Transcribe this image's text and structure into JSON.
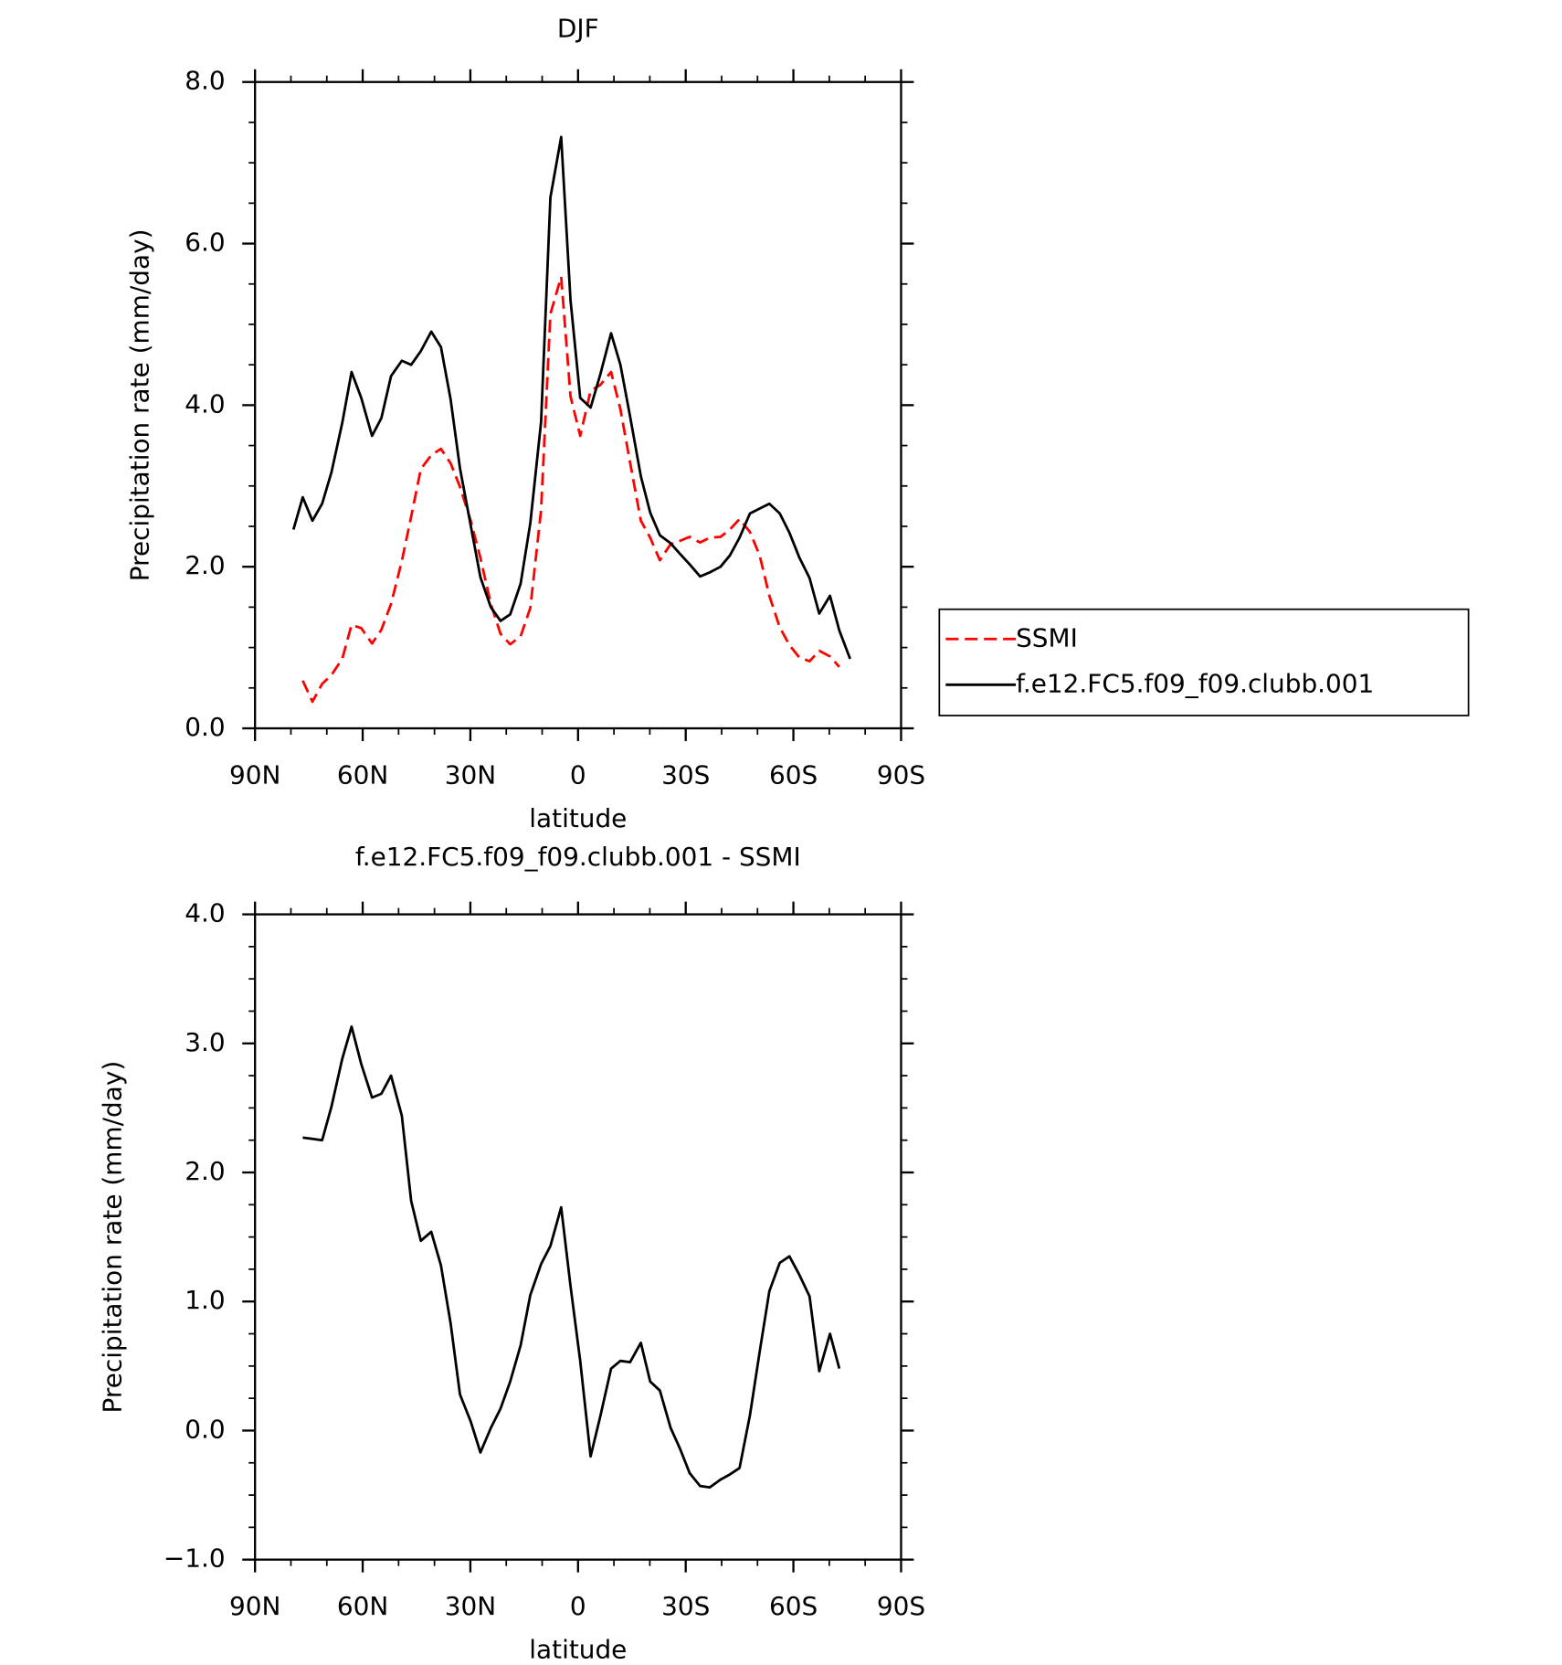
{
  "chart_data": [
    {
      "type": "line",
      "title": "DJF",
      "xlabel": "latitude",
      "ylabel": "Precipitation rate (mm/day)",
      "x": [
        79.3,
        76.7,
        74.0,
        71.3,
        68.7,
        65.7,
        63.1,
        60.4,
        57.4,
        54.8,
        52.1,
        49.1,
        46.5,
        43.8,
        40.9,
        38.2,
        35.5,
        32.9,
        29.9,
        27.2,
        24.3,
        21.6,
        18.9,
        16.0,
        13.3,
        10.3,
        7.7,
        4.7,
        2.1,
        -0.6,
        -3.5,
        -6.2,
        -9.2,
        -11.8,
        -14.5,
        -17.5,
        -20.1,
        -22.8,
        -25.8,
        -28.4,
        -31.1,
        -34.0,
        -36.7,
        -39.7,
        -42.3,
        -45.0,
        -47.9,
        -50.6,
        -53.3,
        -56.2,
        -58.9,
        -61.6,
        -64.5,
        -67.2,
        -70.2,
        -72.8,
        -75.8
      ],
      "xlim": [
        90,
        -90
      ],
      "xticks": [
        {
          "value": 90,
          "label": "90N"
        },
        {
          "value": 60,
          "label": "60N"
        },
        {
          "value": 30,
          "label": "30N"
        },
        0,
        {
          "value": -30,
          "label": "30S"
        },
        {
          "value": -60,
          "label": "60S"
        },
        {
          "value": -90,
          "label": "90S"
        }
      ],
      "ylim": [
        0,
        8
      ],
      "yticks": [
        {
          "value": 0,
          "label": "0.0"
        },
        {
          "value": 2,
          "label": "2.0"
        },
        {
          "value": 4,
          "label": "4.0"
        },
        {
          "value": 6,
          "label": "6.0"
        },
        {
          "value": 8,
          "label": "8.0"
        }
      ],
      "legend": "right",
      "series": [
        {
          "name": "SSMI",
          "color": "#ff0000",
          "dash": true,
          "values": [
            null,
            0.59,
            0.33,
            0.55,
            0.66,
            0.86,
            1.28,
            1.24,
            1.05,
            1.22,
            1.54,
            2.07,
            2.62,
            3.21,
            3.38,
            3.46,
            3.28,
            2.99,
            2.57,
            2.11,
            1.54,
            1.17,
            1.04,
            1.14,
            1.49,
            2.7,
            5.13,
            5.59,
            4.11,
            3.62,
            4.18,
            4.25,
            4.41,
            3.95,
            3.29,
            2.57,
            2.36,
            2.08,
            2.28,
            2.32,
            2.37,
            2.3,
            2.36,
            2.37,
            2.46,
            2.59,
            2.43,
            2.14,
            1.64,
            1.25,
            1.03,
            0.88,
            0.83,
            0.96,
            0.89,
            0.76,
            null
          ]
        },
        {
          "name": "f.e12.FC5.f09_f09.clubb.001",
          "color": "#000000",
          "dash": false,
          "values": [
            2.46,
            2.86,
            2.57,
            2.78,
            3.17,
            3.78,
            4.41,
            4.09,
            3.62,
            3.84,
            4.36,
            4.55,
            4.5,
            4.67,
            4.91,
            4.72,
            4.07,
            3.22,
            2.51,
            1.87,
            1.5,
            1.33,
            1.41,
            1.79,
            2.54,
            3.79,
            6.57,
            7.32,
            5.3,
            4.09,
            3.97,
            4.38,
            4.89,
            4.5,
            3.86,
            3.12,
            2.67,
            2.39,
            2.29,
            2.16,
            2.03,
            1.88,
            1.93,
            2.0,
            2.14,
            2.36,
            2.66,
            2.72,
            2.78,
            2.66,
            2.42,
            2.12,
            1.86,
            1.42,
            1.64,
            1.21,
            0.86
          ]
        }
      ]
    },
    {
      "type": "line",
      "title": "f.e12.FC5.f09_f09.clubb.001 - SSMI",
      "xlabel": "latitude",
      "ylabel": "Precipitation rate (mm/day)",
      "x": [
        79.3,
        76.7,
        74.0,
        71.3,
        68.7,
        65.7,
        63.1,
        60.4,
        57.4,
        54.8,
        52.1,
        49.1,
        46.5,
        43.8,
        40.9,
        38.2,
        35.5,
        32.9,
        29.9,
        27.2,
        24.3,
        21.6,
        18.9,
        16.0,
        13.3,
        10.3,
        7.7,
        4.7,
        2.1,
        -0.6,
        -3.5,
        -6.2,
        -9.2,
        -11.8,
        -14.5,
        -17.5,
        -20.1,
        -22.8,
        -25.8,
        -28.4,
        -31.1,
        -34.0,
        -36.7,
        -39.7,
        -42.3,
        -45.0,
        -47.9,
        -50.6,
        -53.3,
        -56.2,
        -58.9,
        -61.6,
        -64.5,
        -67.2,
        -70.2,
        -72.8,
        -75.8
      ],
      "xlim": [
        90,
        -90
      ],
      "xticks": [
        {
          "value": 90,
          "label": "90N"
        },
        {
          "value": 60,
          "label": "60N"
        },
        {
          "value": 30,
          "label": "30N"
        },
        0,
        {
          "value": -30,
          "label": "30S"
        },
        {
          "value": -60,
          "label": "60S"
        },
        {
          "value": -90,
          "label": "90S"
        }
      ],
      "ylim": [
        -1,
        4
      ],
      "yticks": [
        {
          "value": -1,
          "label": "−1.0"
        },
        {
          "value": 0,
          "label": "0.0"
        },
        {
          "value": 1,
          "label": "1.0"
        },
        {
          "value": 2,
          "label": "2.0"
        },
        {
          "value": 3,
          "label": "3.0"
        },
        {
          "value": 4,
          "label": "4.0"
        }
      ],
      "series": [
        {
          "color": "#000000",
          "dash": false,
          "values": [
            null,
            2.27,
            2.26,
            2.25,
            2.51,
            2.88,
            3.13,
            2.84,
            2.58,
            2.61,
            2.75,
            2.44,
            1.78,
            1.47,
            1.54,
            1.28,
            0.83,
            0.28,
            0.07,
            -0.17,
            0.02,
            0.17,
            0.38,
            0.66,
            1.05,
            1.29,
            1.43,
            1.73,
            1.12,
            0.54,
            -0.2,
            0.11,
            0.48,
            0.54,
            0.53,
            0.68,
            0.38,
            0.31,
            0.02,
            -0.14,
            -0.33,
            -0.43,
            -0.44,
            -0.38,
            -0.34,
            -0.29,
            0.12,
            0.61,
            1.08,
            1.3,
            1.35,
            1.21,
            1.04,
            0.46,
            0.75,
            0.48,
            null
          ]
        }
      ]
    }
  ]
}
